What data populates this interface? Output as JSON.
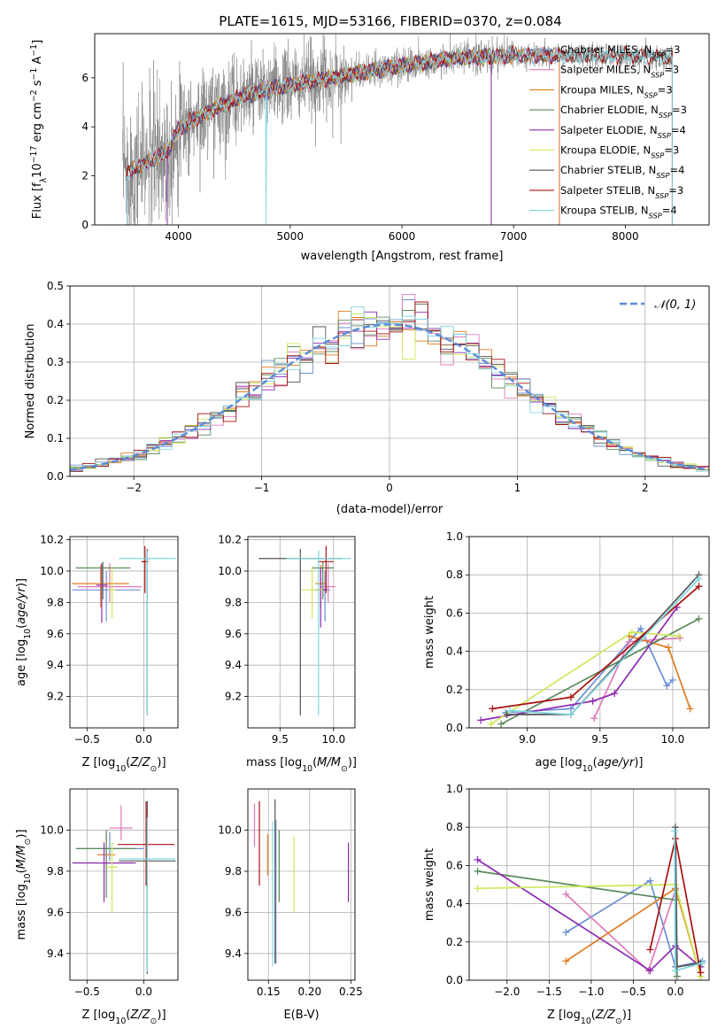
{
  "title": "PLATE=1615, MJD=53166, FIBERID=0370, z=0.084",
  "colors": {
    "chabrier_miles": "#6b8fd6",
    "salpeter_miles": "#e07ab8",
    "kroupa_miles": "#e07b1f",
    "chabrier_elodie": "#5a8a5a",
    "salpeter_elodie": "#8e2bb0",
    "kroupa_elodie": "#cde85a",
    "chabrier_stelib": "#555555",
    "salpeter_stelib": "#aa1111",
    "kroupa_stelib": "#7fd6e0",
    "data": "#808080"
  },
  "legend": [
    {
      "text": "Chabrier MILES, N",
      "sub": "SSP",
      "tail": "=3",
      "color_key": "chabrier_miles"
    },
    {
      "text": "Salpeter MILES, N",
      "sub": "SSP",
      "tail": "=3",
      "color_key": "salpeter_miles"
    },
    {
      "text": "Kroupa MILES, N",
      "sub": "SSP",
      "tail": "=3",
      "color_key": "kroupa_miles"
    },
    {
      "text": "Chabrier ELODIE, N",
      "sub": "SSP",
      "tail": "=3",
      "color_key": "chabrier_elodie"
    },
    {
      "text": "Salpeter ELODIE, N",
      "sub": "SSP",
      "tail": "=4",
      "color_key": "salpeter_elodie"
    },
    {
      "text": "Kroupa ELODIE, N",
      "sub": "SSP",
      "tail": "=3",
      "color_key": "kroupa_elodie"
    },
    {
      "text": "Chabrier STELIB, N",
      "sub": "SSP",
      "tail": "=4",
      "color_key": "chabrier_stelib"
    },
    {
      "text": "Salpeter STELIB, N",
      "sub": "SSP",
      "tail": "=3",
      "color_key": "salpeter_stelib"
    },
    {
      "text": "Kroupa STELIB, N",
      "sub": "SSP",
      "tail": "=4",
      "color_key": "kroupa_stelib"
    }
  ],
  "chart_data": [
    {
      "id": "spectrum",
      "type": "line",
      "xlabel": "wavelength [Angstrom, rest frame]",
      "ylabel": "Flux [fλ10⁻¹⁷ erg cm⁻² s⁻¹ A⁻¹]",
      "xlim": [
        3250,
        8750
      ],
      "ylim": [
        0,
        7.8
      ],
      "xticks": [
        4000,
        5000,
        6000,
        7000,
        8000
      ],
      "yticks": [
        0,
        2,
        4,
        6
      ],
      "continuum": [
        [
          3500,
          2.1
        ],
        [
          3700,
          2.5
        ],
        [
          3900,
          3.0
        ],
        [
          4000,
          3.9
        ],
        [
          4300,
          4.7
        ],
        [
          4600,
          5.3
        ],
        [
          5000,
          5.7
        ],
        [
          5500,
          6.1
        ],
        [
          6000,
          6.5
        ],
        [
          6500,
          6.8
        ],
        [
          7000,
          6.9
        ],
        [
          7500,
          6.9
        ],
        [
          8000,
          6.9
        ],
        [
          8400,
          6.8
        ]
      ],
      "data_range": [
        3500,
        8420
      ],
      "model_ranges": {
        "chabrier_miles": [
          3540,
          7410
        ],
        "salpeter_miles": [
          3540,
          7410
        ],
        "kroupa_miles": [
          3540,
          7410
        ],
        "chabrier_elodie": [
          3900,
          6800
        ],
        "salpeter_elodie": [
          3900,
          6800
        ],
        "kroupa_elodie": [
          3900,
          6800
        ],
        "chabrier_stelib": [
          3540,
          8420
        ],
        "salpeter_stelib": [
          3540,
          8420
        ],
        "kroupa_stelib": [
          3540,
          8420
        ]
      },
      "grid": false,
      "legend_position": "right"
    },
    {
      "id": "residuals",
      "type": "histogram",
      "xlabel": "(data-model)/error",
      "ylabel": "Normed distribution",
      "xlim": [
        -2.5,
        2.5
      ],
      "ylim": [
        0,
        0.5
      ],
      "xticks": [
        -2,
        -1,
        0,
        1,
        2
      ],
      "yticks": [
        0.0,
        0.1,
        0.2,
        0.3,
        0.4,
        0.5
      ],
      "bin_width": 0.1,
      "gaussian_label": "𝒩(0, 1)",
      "gaussian_color": "#5b8bd6",
      "grid": true,
      "legend_position": "top-right"
    },
    {
      "id": "age_vs_z",
      "type": "errorbar",
      "xlabel": "Z [log10(Z/Z⊙)]",
      "ylabel": "age  [log10(age/yr)]",
      "xlim": [
        -0.65,
        0.3
      ],
      "ylim": [
        9.0,
        10.22
      ],
      "xticks": [
        -0.5,
        0.0
      ],
      "yticks": [
        9.2,
        9.4,
        9.6,
        9.8,
        10.0,
        10.2
      ],
      "points": [
        {
          "c": "chabrier_miles",
          "x": -0.33,
          "y": 9.88,
          "ex": 0.3,
          "ey": [
            0.2,
            0.12
          ]
        },
        {
          "c": "salpeter_miles",
          "x": -0.3,
          "y": 9.9,
          "ex": 0.28,
          "ey": [
            0.1,
            0.15
          ]
        },
        {
          "c": "kroupa_miles",
          "x": -0.38,
          "y": 9.92,
          "ex": 0.25,
          "ey": [
            0.15,
            0.12
          ]
        },
        {
          "c": "chabrier_elodie",
          "x": -0.36,
          "y": 10.02,
          "ex": 0.24,
          "ey": [
            0.2,
            0.04
          ]
        },
        {
          "c": "salpeter_elodie",
          "x": -0.37,
          "y": 9.91,
          "ex": 0.05,
          "ey": [
            0.24,
            0.14
          ]
        },
        {
          "c": "kroupa_elodie",
          "x": -0.28,
          "y": 9.88,
          "ex": 0.03,
          "ey": [
            0.18,
            0.15
          ]
        },
        {
          "c": "chabrier_stelib",
          "x": 0.03,
          "y": 10.08,
          "ex": 0.02,
          "ey": [
            1.0,
            0.06
          ]
        },
        {
          "c": "salpeter_stelib",
          "x": 0.01,
          "y": 10.06,
          "ex": 0.03,
          "ey": [
            0.2,
            0.1
          ]
        },
        {
          "c": "kroupa_stelib",
          "x": 0.03,
          "y": 10.08,
          "ex": 0.25,
          "ey": [
            1.0,
            0.05
          ]
        }
      ]
    },
    {
      "id": "age_vs_mass",
      "type": "errorbar",
      "xlabel": "mass [log10(M/M⊙)]",
      "ylabel": "",
      "xlim": [
        9.2,
        10.2
      ],
      "ylim": [
        9.0,
        10.22
      ],
      "xticks": [
        9.5,
        10.0
      ],
      "yticks": [
        9.2,
        9.4,
        9.6,
        9.8,
        10.0,
        10.2
      ],
      "points": [
        {
          "c": "chabrier_miles",
          "x": 9.92,
          "y": 9.88,
          "ex": 0.05,
          "ey": [
            0.2,
            0.12
          ]
        },
        {
          "c": "salpeter_miles",
          "x": 9.95,
          "y": 9.9,
          "ex": 0.07,
          "ey": [
            0.1,
            0.15
          ]
        },
        {
          "c": "kroupa_miles",
          "x": 9.88,
          "y": 9.92,
          "ex": 0.05,
          "ey": [
            0.15,
            0.12
          ]
        },
        {
          "c": "chabrier_elodie",
          "x": 9.9,
          "y": 10.02,
          "ex": 0.1,
          "ey": [
            0.2,
            0.04
          ]
        },
        {
          "c": "salpeter_elodie",
          "x": 9.88,
          "y": 9.88,
          "ex": 0.06,
          "ey": [
            0.24,
            0.14
          ]
        },
        {
          "c": "kroupa_elodie",
          "x": 9.8,
          "y": 9.88,
          "ex": 0.1,
          "ey": [
            0.18,
            0.15
          ]
        },
        {
          "c": "chabrier_stelib",
          "x": 9.69,
          "y": 10.08,
          "ex": 0.39,
          "ey": [
            1.0,
            0.06
          ]
        },
        {
          "c": "salpeter_stelib",
          "x": 9.93,
          "y": 10.06,
          "ex": 0.07,
          "ey": [
            0.2,
            0.1
          ]
        },
        {
          "c": "kroupa_stelib",
          "x": 9.86,
          "y": 10.08,
          "ex": 0.3,
          "ey": [
            1.0,
            0.05
          ]
        }
      ]
    },
    {
      "id": "weight_vs_age",
      "type": "line",
      "xlabel": "age  [log10(age/yr)]",
      "ylabel": "mass weight",
      "xlim": [
        8.6,
        10.25
      ],
      "ylim": [
        0,
        1.0
      ],
      "xticks": [
        9.0,
        9.5,
        10.0
      ],
      "yticks": [
        0.0,
        0.2,
        0.4,
        0.6,
        0.8,
        1.0
      ],
      "series": [
        {
          "c": "chabrier_miles",
          "x": [
            8.85,
            9.3,
            9.78,
            9.96,
            10.0
          ],
          "y": [
            0.08,
            0.1,
            0.52,
            0.22,
            0.25
          ]
        },
        {
          "c": "salpeter_miles",
          "x": [
            9.46,
            9.7,
            10.05
          ],
          "y": [
            0.05,
            0.45,
            0.47
          ]
        },
        {
          "c": "kroupa_miles",
          "x": [
            9.7,
            9.97,
            10.12
          ],
          "y": [
            0.48,
            0.42,
            0.1
          ]
        },
        {
          "c": "chabrier_elodie",
          "x": [
            8.82,
            10.18
          ],
          "y": [
            0.02,
            0.57
          ]
        },
        {
          "c": "salpeter_elodie",
          "x": [
            8.68,
            9.45,
            9.6,
            10.03
          ],
          "y": [
            0.04,
            0.14,
            0.18,
            0.63
          ]
        },
        {
          "c": "kroupa_elodie",
          "x": [
            8.75,
            9.72,
            10.04
          ],
          "y": [
            0.02,
            0.5,
            0.48
          ]
        },
        {
          "c": "chabrier_stelib",
          "x": [
            8.86,
            9.3,
            10.18
          ],
          "y": [
            0.07,
            0.07,
            0.8
          ]
        },
        {
          "c": "salpeter_stelib",
          "x": [
            8.76,
            9.3,
            10.18
          ],
          "y": [
            0.1,
            0.16,
            0.74
          ]
        },
        {
          "c": "kroupa_stelib",
          "x": [
            8.88,
            9.3,
            10.18
          ],
          "y": [
            0.09,
            0.07,
            0.78
          ]
        }
      ],
      "grid": true
    },
    {
      "id": "mass_vs_z",
      "type": "errorbar",
      "xlabel": "Z [log10(Z/Z⊙)]",
      "ylabel": "mass [log10(M/M⊙)]",
      "xlim": [
        -0.65,
        0.3
      ],
      "ylim": [
        9.27,
        10.2
      ],
      "xticks": [
        -0.5,
        0.0
      ],
      "yticks": [
        9.4,
        9.6,
        9.8,
        10.0
      ],
      "points": [
        {
          "c": "chabrier_miles",
          "x": -0.3,
          "y": 9.91,
          "ex": 0.3,
          "ey": [
            0.06,
            0.08
          ]
        },
        {
          "c": "salpeter_miles",
          "x": -0.2,
          "y": 10.01,
          "ex": 0.1,
          "ey": [
            0.06,
            0.11
          ]
        },
        {
          "c": "kroupa_miles",
          "x": -0.33,
          "y": 9.88,
          "ex": 0.08,
          "ey": [
            0.07,
            0.1
          ]
        },
        {
          "c": "chabrier_elodie",
          "x": -0.33,
          "y": 9.91,
          "ex": 0.26,
          "ey": [
            0.24,
            0.09
          ]
        },
        {
          "c": "salpeter_elodie",
          "x": -0.35,
          "y": 9.84,
          "ex": 0.28,
          "ey": [
            0.19,
            0.1
          ]
        },
        {
          "c": "kroupa_elodie",
          "x": -0.28,
          "y": 9.82,
          "ex": 0.05,
          "ey": [
            0.22,
            0.12
          ]
        },
        {
          "c": "chabrier_stelib",
          "x": 0.03,
          "y": 9.85,
          "ex": 0.25,
          "ey": [
            0.55,
            0.29
          ]
        },
        {
          "c": "salpeter_stelib",
          "x": 0.02,
          "y": 9.93,
          "ex": 0.25,
          "ey": [
            0.2,
            0.21
          ]
        },
        {
          "c": "kroupa_stelib",
          "x": 0.03,
          "y": 9.86,
          "ex": 0.25,
          "ey": [
            0.55,
            0.2
          ]
        }
      ]
    },
    {
      "id": "mass_vs_ebv",
      "type": "errorbar",
      "xlabel": "E(B-V)",
      "ylabel": "",
      "xlim": [
        0.125,
        0.255
      ],
      "ylim": [
        9.27,
        10.2
      ],
      "xticks": [
        0.15,
        0.2,
        0.25
      ],
      "yticks": [
        9.4,
        9.6,
        9.8,
        10.0
      ],
      "points": [
        {
          "c": "chabrier_miles",
          "x": 0.159,
          "y": 9.85,
          "ex": 0,
          "ey": [
            0.5,
            0.2
          ]
        },
        {
          "c": "salpeter_miles",
          "x": 0.133,
          "y": 10.0,
          "ex": 0,
          "ey": [
            0.08,
            0.13
          ]
        },
        {
          "c": "kroupa_miles",
          "x": 0.149,
          "y": 9.88,
          "ex": 0,
          "ey": [
            0.1,
            0.1
          ]
        },
        {
          "c": "chabrier_elodie",
          "x": 0.163,
          "y": 9.85,
          "ex": 0,
          "ey": [
            0.2,
            0.15
          ]
        },
        {
          "c": "salpeter_elodie",
          "x": 0.247,
          "y": 9.8,
          "ex": 0,
          "ey": [
            0.15,
            0.14
          ]
        },
        {
          "c": "kroupa_elodie",
          "x": 0.181,
          "y": 9.8,
          "ex": 0,
          "ey": [
            0.2,
            0.17
          ]
        },
        {
          "c": "chabrier_stelib",
          "x": 0.158,
          "y": 9.75,
          "ex": 0,
          "ey": [
            0.4,
            0.4
          ]
        },
        {
          "c": "salpeter_stelib",
          "x": 0.139,
          "y": 9.93,
          "ex": 0,
          "ey": [
            0.2,
            0.21
          ]
        },
        {
          "c": "kroupa_stelib",
          "x": 0.155,
          "y": 9.74,
          "ex": 0,
          "ey": [
            0.4,
            0.3
          ]
        }
      ]
    },
    {
      "id": "weight_vs_z",
      "type": "line",
      "xlabel": "Z [log10(Z/Z⊙)]",
      "ylabel": "mass weight",
      "xlim": [
        -2.45,
        0.4
      ],
      "ylim": [
        0,
        1.0
      ],
      "xticks": [
        -2.0,
        -1.5,
        -1.0,
        -0.5,
        0.0
      ],
      "yticks": [
        0.0,
        0.2,
        0.4,
        0.6,
        0.8,
        1.0
      ],
      "series": [
        {
          "c": "chabrier_miles",
          "x": [
            -1.3,
            -0.3,
            0.0,
            0.32
          ],
          "y": [
            0.25,
            0.52,
            0.07,
            0.1
          ]
        },
        {
          "c": "salpeter_miles",
          "x": [
            -1.3,
            -0.32,
            0.0
          ],
          "y": [
            0.45,
            0.05,
            0.47
          ]
        },
        {
          "c": "kroupa_miles",
          "x": [
            -1.3,
            0.0,
            0.3
          ],
          "y": [
            0.1,
            0.48,
            0.02
          ]
        },
        {
          "c": "chabrier_elodie",
          "x": [
            -2.35,
            0.0,
            0.02
          ],
          "y": [
            0.57,
            0.42,
            0.02
          ]
        },
        {
          "c": "salpeter_elodie",
          "x": [
            -2.35,
            -0.3,
            0.0,
            0.3
          ],
          "y": [
            0.63,
            0.05,
            0.18,
            0.07
          ]
        },
        {
          "c": "kroupa_elodie",
          "x": [
            -2.35,
            0.0,
            0.3
          ],
          "y": [
            0.48,
            0.5,
            0.02
          ]
        },
        {
          "c": "chabrier_stelib",
          "x": [
            0.0,
            0.02,
            0.3
          ],
          "y": [
            0.8,
            0.07,
            0.09
          ]
        },
        {
          "c": "salpeter_stelib",
          "x": [
            -0.3,
            0.0,
            0.3
          ],
          "y": [
            0.16,
            0.74,
            0.04
          ]
        },
        {
          "c": "kroupa_stelib",
          "x": [
            -0.01,
            0.0,
            0.32
          ],
          "y": [
            0.78,
            0.05,
            0.09
          ]
        }
      ],
      "grid": true
    }
  ]
}
